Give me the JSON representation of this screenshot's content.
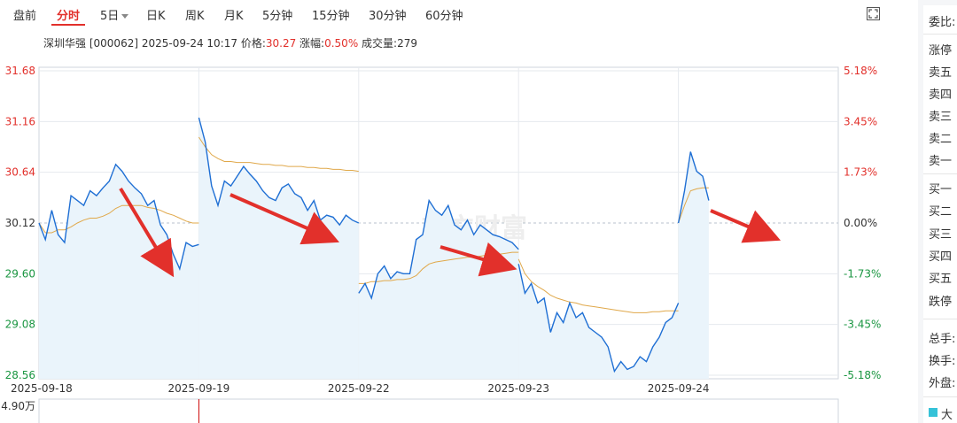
{
  "tabs": [
    {
      "label": "盘前",
      "active": false
    },
    {
      "label": "分时",
      "active": true
    },
    {
      "label": "5日",
      "active": false,
      "dropdown": true
    },
    {
      "label": "日K",
      "active": false
    },
    {
      "label": "周K",
      "active": false
    },
    {
      "label": "月K",
      "active": false
    },
    {
      "label": "5分钟",
      "active": false
    },
    {
      "label": "15分钟",
      "active": false
    },
    {
      "label": "30分钟",
      "active": false
    },
    {
      "label": "60分钟",
      "active": false
    }
  ],
  "info": {
    "name": "深圳华强",
    "code": "[000062]",
    "datetime": "2025-09-24 10:17",
    "price_label": "价格:",
    "price": "30.27",
    "change_label": "涨幅:",
    "change": "0.50%",
    "volume_label": "成交量:",
    "volume": "279"
  },
  "watermark": "东方财富",
  "volume_axis_label": "4.90万",
  "right_panel": {
    "title": "委比:",
    "sell_rows": [
      "涨停",
      "卖五",
      "卖四",
      "卖三",
      "卖二",
      "卖一"
    ],
    "buy_rows": [
      "买一",
      "买二",
      "买三",
      "买四",
      "买五",
      "跌停"
    ],
    "stats": [
      "总手:",
      "换手:",
      "外盘:"
    ],
    "legend": "大"
  },
  "colors": {
    "up": "#e2302b",
    "down": "#1a9641",
    "price_line": "#1f6fd4",
    "avg_line": "#e0a84a",
    "area_fill": "#eaf4fb",
    "accent": "#e2302b"
  },
  "chart_data": {
    "type": "line",
    "title": "",
    "prev_close": 30.12,
    "y_ticks": [
      31.68,
      31.16,
      30.64,
      30.12,
      29.6,
      29.08,
      28.56
    ],
    "y_ticks_right": [
      "5.18%",
      "3.45%",
      "1.73%",
      "0.00%",
      "-1.73%",
      "-3.45%",
      "-5.18%"
    ],
    "ylim": [
      28.56,
      31.68
    ],
    "x_labels": [
      "2025-09-18",
      "2025-09-19",
      "2025-09-22",
      "2025-09-23",
      "2025-09-24"
    ],
    "series": [
      {
        "values": [
          [
            30.12,
            29.95,
            30.25,
            30.0,
            29.92,
            30.4,
            30.35,
            30.3,
            30.45,
            30.4,
            30.48,
            30.55,
            30.72,
            30.65,
            30.55,
            30.48,
            30.42,
            30.3,
            30.35,
            30.1,
            30.0,
            29.8,
            29.65,
            29.92,
            29.88,
            29.9
          ],
          [
            31.2,
            30.95,
            30.5,
            30.3,
            30.55,
            30.5,
            30.6,
            30.7,
            30.62,
            30.55,
            30.45,
            30.38,
            30.35,
            30.48,
            30.52,
            30.42,
            30.38,
            30.25,
            30.35,
            30.15,
            30.2,
            30.18,
            30.1,
            30.2,
            30.15,
            30.12
          ],
          [
            29.4,
            29.5,
            29.35,
            29.6,
            29.68,
            29.55,
            29.62,
            29.6,
            29.6,
            29.95,
            30.0,
            30.35,
            30.25,
            30.2,
            30.3,
            30.1,
            30.05,
            30.15,
            30.0,
            30.1,
            30.05,
            30.0,
            29.98,
            29.95,
            29.92,
            29.85
          ],
          [
            29.7,
            29.4,
            29.5,
            29.3,
            29.35,
            29.0,
            29.2,
            29.1,
            29.3,
            29.15,
            29.2,
            29.05,
            29.0,
            28.95,
            28.85,
            28.6,
            28.7,
            28.62,
            28.65,
            28.75,
            28.7,
            28.85,
            28.95,
            29.1,
            29.15,
            29.3
          ],
          [
            30.12,
            30.45,
            30.85,
            30.65,
            30.6,
            30.35
          ]
        ]
      },
      {
        "values": [
          [
            30.12,
            30.02,
            30.02,
            30.05,
            30.05,
            30.08,
            30.12,
            30.15,
            30.17,
            30.17,
            30.19,
            30.22,
            30.27,
            30.3,
            30.3,
            30.3,
            30.3,
            30.28,
            30.27,
            30.25,
            30.22,
            30.2,
            30.17,
            30.14,
            30.12,
            30.12
          ],
          [
            31.0,
            30.9,
            30.82,
            30.78,
            30.75,
            30.75,
            30.74,
            30.74,
            30.74,
            30.73,
            30.72,
            30.72,
            30.71,
            30.71,
            30.7,
            30.7,
            30.7,
            30.69,
            30.69,
            30.68,
            30.68,
            30.67,
            30.67,
            30.66,
            30.66,
            30.65
          ],
          [
            29.5,
            29.5,
            29.52,
            29.52,
            29.53,
            29.53,
            29.54,
            29.54,
            29.55,
            29.58,
            29.65,
            29.7,
            29.72,
            29.73,
            29.74,
            29.75,
            29.76,
            29.77,
            29.77,
            29.78,
            29.79,
            29.8,
            29.8,
            29.81,
            29.82,
            29.82
          ],
          [
            29.75,
            29.6,
            29.52,
            29.47,
            29.43,
            29.38,
            29.35,
            29.33,
            29.31,
            29.3,
            29.28,
            29.27,
            29.26,
            29.25,
            29.24,
            29.23,
            29.22,
            29.21,
            29.2,
            29.2,
            29.2,
            29.21,
            29.21,
            29.22,
            29.22,
            29.22
          ],
          [
            30.12,
            30.3,
            30.45,
            30.47,
            30.48,
            30.48
          ]
        ]
      }
    ],
    "annotations": "four red arrows"
  }
}
